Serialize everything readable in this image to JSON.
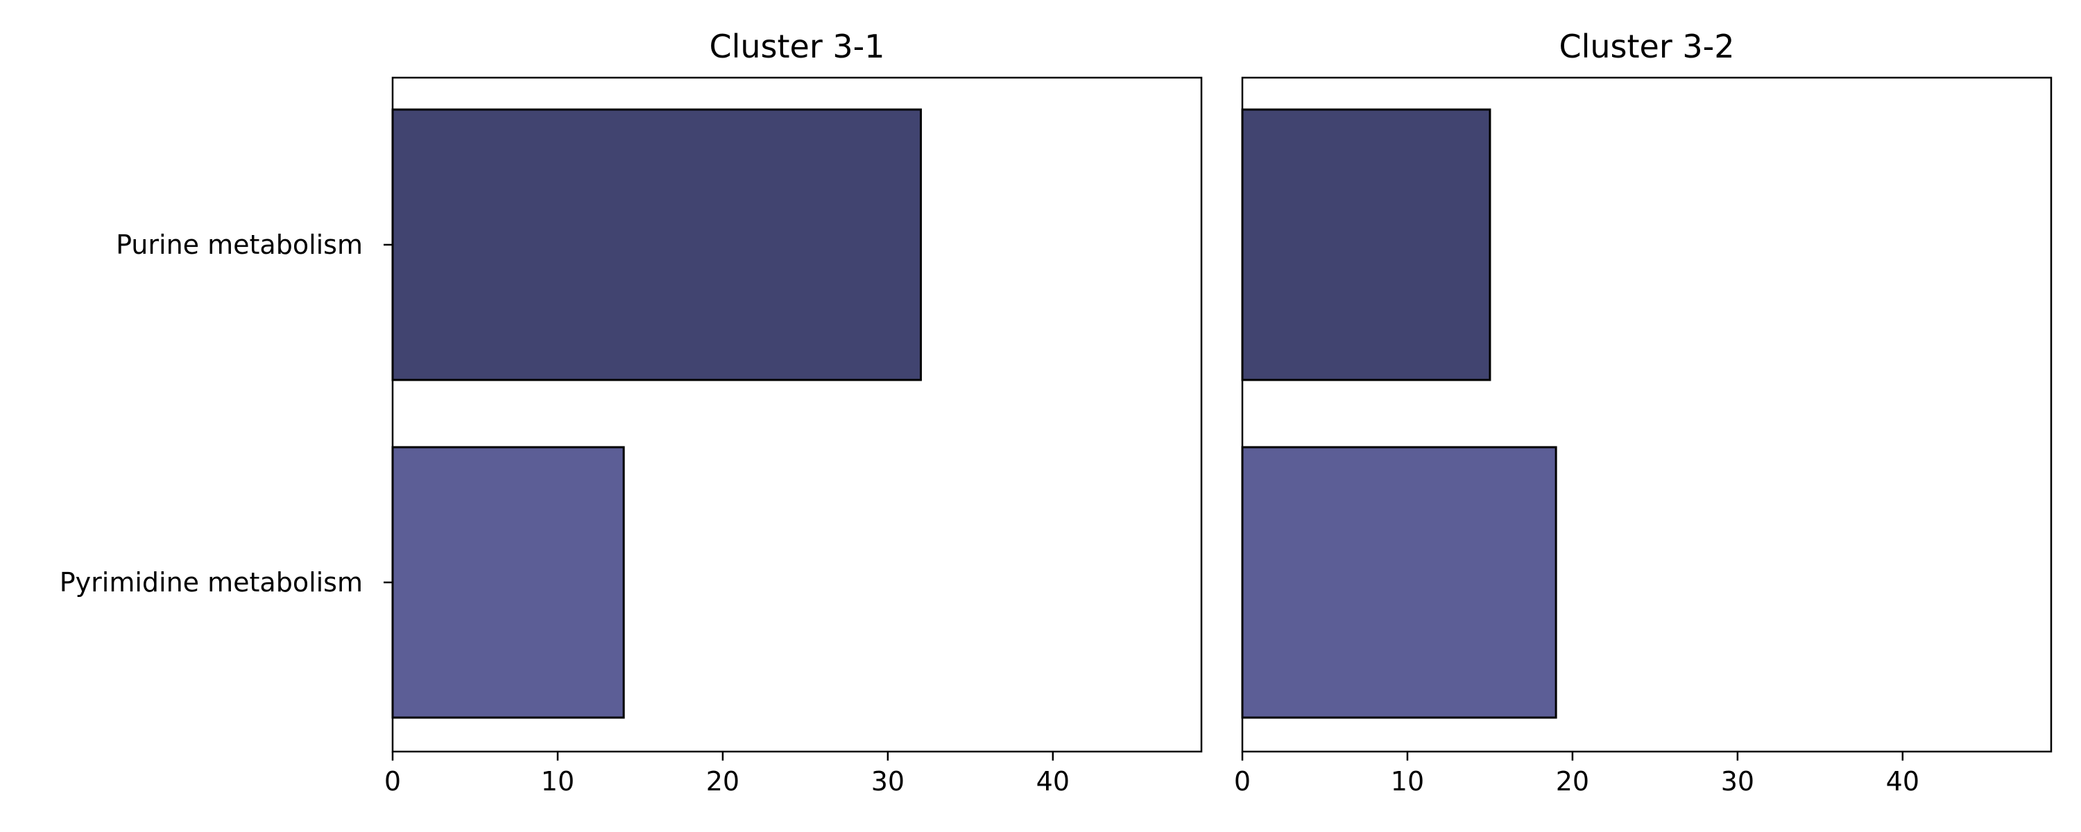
{
  "chart_data": [
    {
      "type": "bar",
      "orientation": "horizontal",
      "title": "Cluster 3-1",
      "categories": [
        "Purine metabolism",
        "Pyrimidine metabolism"
      ],
      "values": [
        32,
        14
      ],
      "colors": [
        "#414470",
        "#5c5e96"
      ],
      "xlim": [
        0,
        49
      ],
      "xticks": [
        "0",
        "10",
        "20",
        "30",
        "40"
      ],
      "xlabel": "",
      "ylabel": "",
      "grid": false
    },
    {
      "type": "bar",
      "orientation": "horizontal",
      "title": "Cluster 3-2",
      "categories": [
        "Purine metabolism",
        "Pyrimidine metabolism"
      ],
      "values": [
        15,
        19
      ],
      "colors": [
        "#414470",
        "#5c5e96"
      ],
      "xlim": [
        0,
        49
      ],
      "xticks": [
        "0",
        "10",
        "20",
        "30",
        "40"
      ],
      "xlabel": "",
      "ylabel": "",
      "grid": false
    }
  ]
}
